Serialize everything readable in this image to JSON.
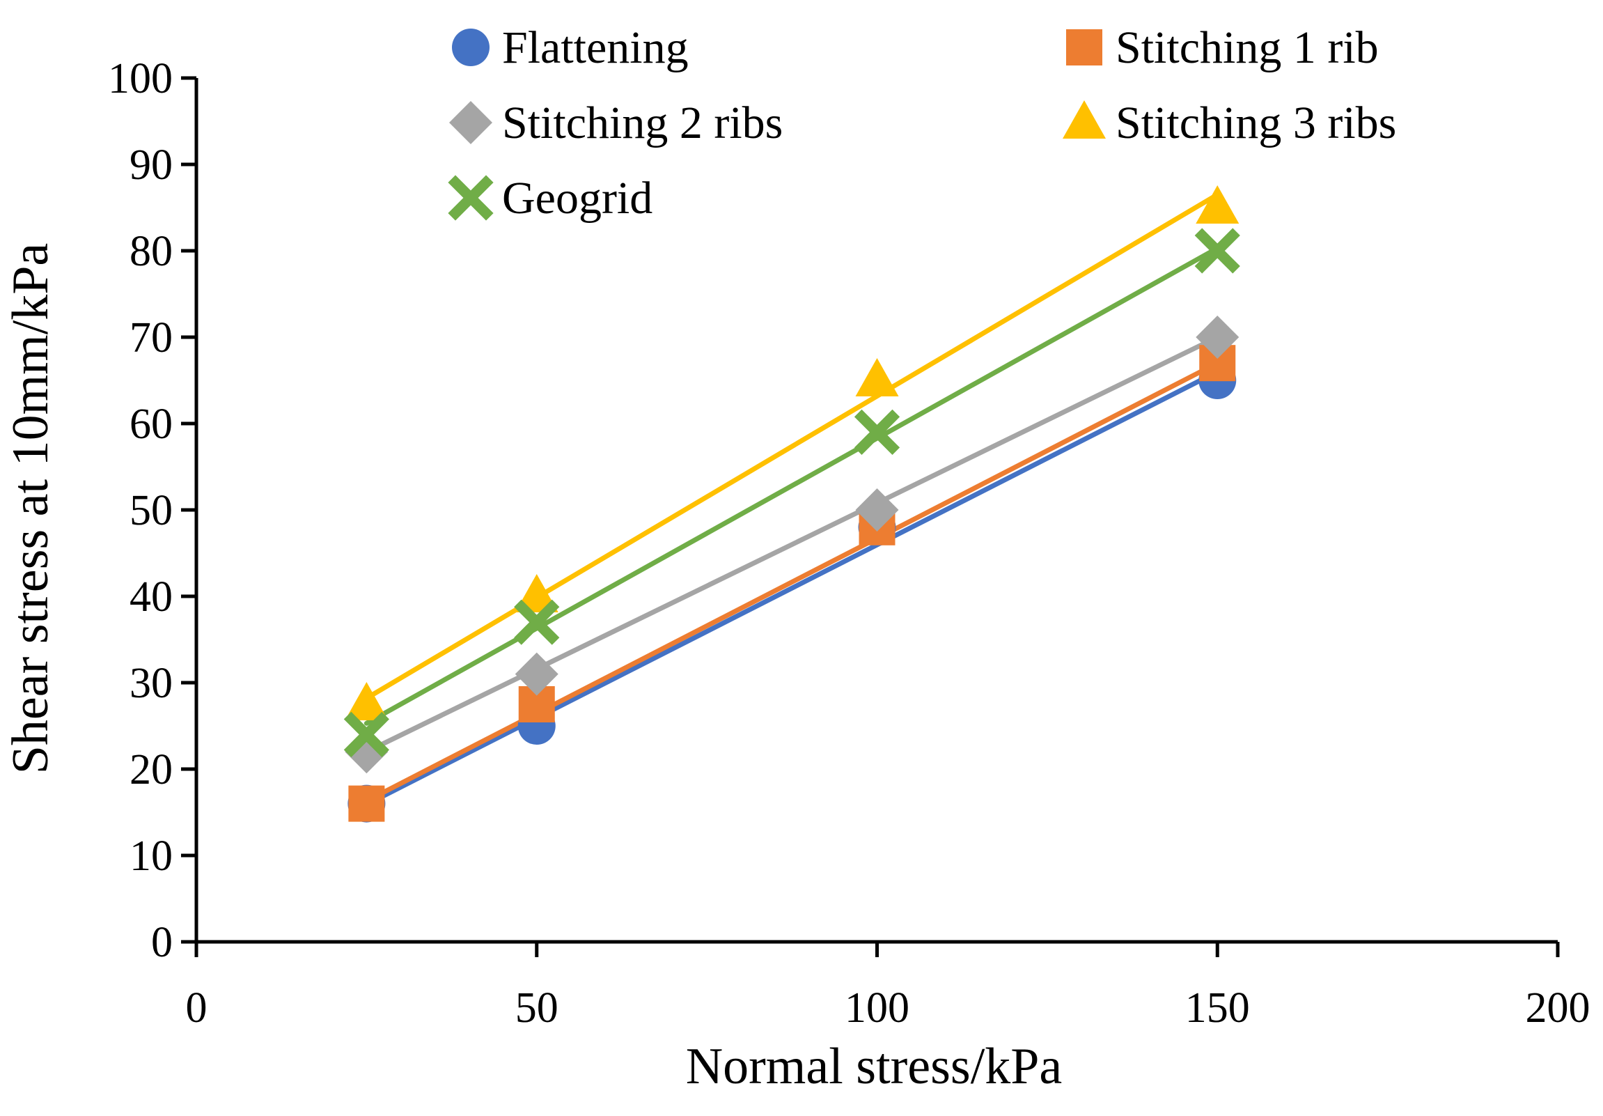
{
  "chart_data": {
    "type": "scatter",
    "title": "",
    "xlabel": "Normal stress/kPa",
    "ylabel": "Shear stress at 10mm/kPa",
    "xlim": [
      0,
      200
    ],
    "ylim": [
      0,
      100
    ],
    "x_ticks": [
      "0",
      "50",
      "100",
      "150",
      "200"
    ],
    "y_ticks": [
      "0",
      "10",
      "20",
      "30",
      "40",
      "50",
      "60",
      "70",
      "80",
      "90",
      "100"
    ],
    "grid": false,
    "legend_position": "top",
    "series": [
      {
        "name": "Flattening",
        "marker": "circle",
        "color": "#4472C4",
        "x": [
          25,
          50,
          100,
          150
        ],
        "y": [
          16,
          25,
          48,
          65
        ],
        "trendline": [
          [
            25,
            15.9
          ],
          [
            150,
            66
          ]
        ]
      },
      {
        "name": "Stitching 1 rib",
        "marker": "square",
        "color": "#ED7D31",
        "x": [
          25,
          50,
          100,
          150
        ],
        "y": [
          16,
          27.5,
          48,
          67
        ],
        "trendline": [
          [
            25,
            16.3
          ],
          [
            150,
            67
          ]
        ]
      },
      {
        "name": "Stitching 2 ribs",
        "marker": "diamond",
        "color": "#A5A5A5",
        "x": [
          25,
          50,
          100,
          150
        ],
        "y": [
          22,
          31,
          50,
          70
        ],
        "trendline": [
          [
            25,
            22
          ],
          [
            150,
            70
          ]
        ]
      },
      {
        "name": "Stitching 3 ribs",
        "marker": "triangle",
        "color": "#FFC000",
        "x": [
          25,
          50,
          100,
          150
        ],
        "y": [
          27.5,
          40,
          65,
          85
        ],
        "trendline": [
          [
            25,
            28.2
          ],
          [
            150,
            86.5
          ]
        ]
      },
      {
        "name": "Geogrid",
        "marker": "x",
        "color": "#70AD47",
        "x": [
          25,
          50,
          100,
          150
        ],
        "y": [
          24,
          37,
          59,
          80
        ],
        "trendline": [
          [
            25,
            25.3
          ],
          [
            150,
            80.3
          ]
        ]
      }
    ]
  }
}
